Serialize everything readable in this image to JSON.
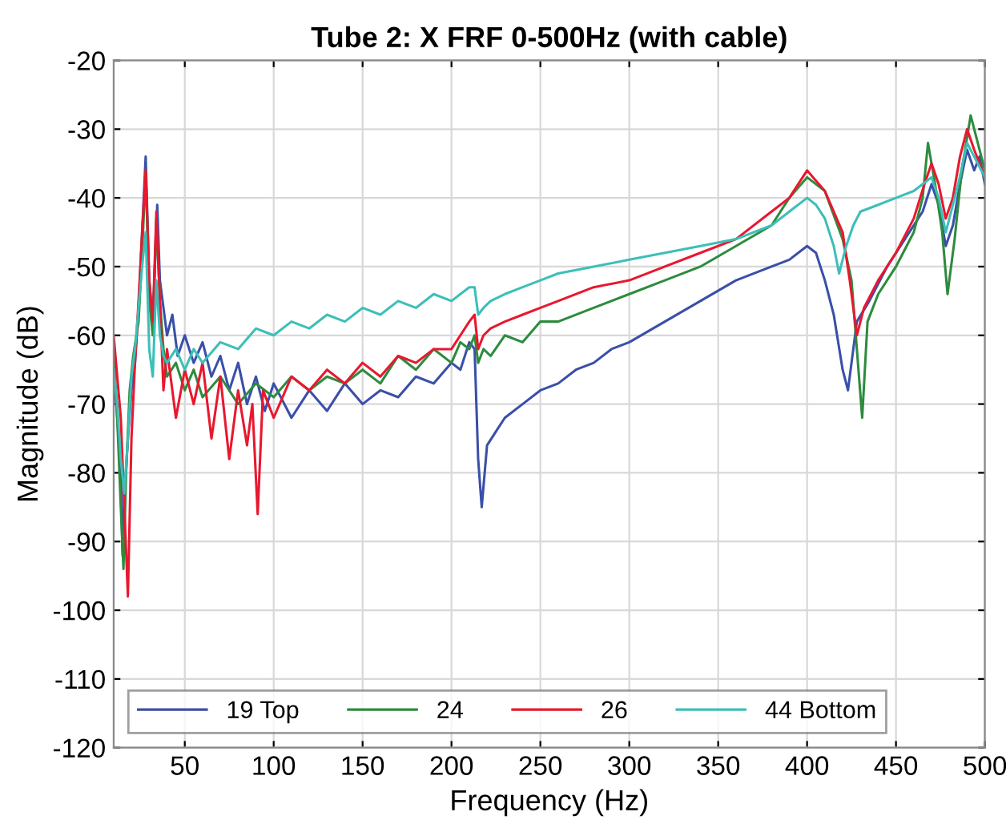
{
  "chart_data": {
    "type": "line",
    "title": "Tube 2: X FRF 0-500Hz (with cable)",
    "xlabel": "Frequency (Hz)",
    "ylabel": "Magnitude (dB)",
    "xlim": [
      10,
      500
    ],
    "xticks": [
      50,
      100,
      150,
      200,
      250,
      300,
      350,
      400,
      450,
      500
    ],
    "ylim": [
      -120,
      -20
    ],
    "yticks": [
      -120,
      -110,
      -100,
      -90,
      -80,
      -70,
      -60,
      -50,
      -40,
      -30,
      -20
    ],
    "grid": true,
    "legend": "bottom left",
    "line_style": "solid",
    "marker": "none",
    "series": [
      {
        "name": "19 Top",
        "color": "#3a4fa8",
        "x": [
          10,
          12,
          14,
          15,
          16,
          18,
          20,
          22,
          24,
          26,
          28,
          30,
          32,
          34.5,
          36,
          38,
          40,
          43,
          46,
          50,
          55,
          60,
          65,
          70,
          75,
          80,
          85,
          90,
          95,
          100,
          110,
          120,
          130,
          140,
          150,
          160,
          170,
          180,
          190,
          200,
          205,
          210,
          213,
          215,
          217,
          220,
          225,
          230,
          240,
          250,
          260,
          270,
          280,
          290,
          300,
          320,
          340,
          360,
          380,
          390,
          400,
          405,
          410,
          415,
          420,
          423,
          428,
          435,
          445,
          455,
          465,
          470,
          474,
          478,
          482,
          486,
          490,
          494,
          497,
          500
        ],
        "values": [
          -65,
          -72,
          -80,
          -92,
          -84,
          -75,
          -68,
          -64,
          -56,
          -45,
          -34,
          -52,
          -58,
          -41,
          -52,
          -56,
          -60,
          -57,
          -63,
          -60,
          -64,
          -61,
          -66,
          -63,
          -68,
          -64,
          -70,
          -66,
          -71,
          -67,
          -72,
          -68,
          -71,
          -67,
          -70,
          -68,
          -69,
          -66,
          -67,
          -64,
          -65,
          -61,
          -62,
          -78,
          -85,
          -76,
          -74,
          -72,
          -70,
          -68,
          -67,
          -65,
          -64,
          -62,
          -61,
          -58,
          -55,
          -52,
          -50,
          -49,
          -47,
          -48,
          -52,
          -57,
          -65,
          -68,
          -58,
          -55,
          -50,
          -46,
          -42,
          -38,
          -41,
          -47,
          -44,
          -38,
          -33,
          -36,
          -34,
          -38
        ]
      },
      {
        "name": "24",
        "color": "#2e8b3e",
        "x": [
          10,
          12,
          14,
          15.5,
          17,
          19,
          21,
          24,
          26,
          28,
          30,
          32,
          34,
          36,
          38,
          40,
          45,
          50,
          55,
          60,
          70,
          80,
          90,
          100,
          110,
          120,
          130,
          140,
          150,
          160,
          170,
          180,
          190,
          200,
          205,
          210,
          213,
          215,
          218,
          222,
          230,
          240,
          250,
          260,
          280,
          300,
          320,
          340,
          360,
          380,
          390,
          400,
          410,
          420,
          425,
          428,
          431,
          434,
          440,
          450,
          460,
          465,
          468,
          472,
          476,
          479,
          483,
          487,
          492,
          496,
          500
        ],
        "values": [
          -62,
          -72,
          -85,
          -94,
          -80,
          -68,
          -63,
          -58,
          -48,
          -36,
          -55,
          -60,
          -43,
          -55,
          -62,
          -66,
          -64,
          -68,
          -65,
          -69,
          -66,
          -70,
          -67,
          -69,
          -66,
          -68,
          -66,
          -67,
          -65,
          -67,
          -63,
          -65,
          -62,
          -64,
          -61,
          -62,
          -60,
          -64,
          -62,
          -63,
          -60,
          -61,
          -58,
          -58,
          -56,
          -54,
          -52,
          -50,
          -47,
          -44,
          -40,
          -37,
          -39,
          -46,
          -52,
          -62,
          -72,
          -58,
          -54,
          -50,
          -45,
          -40,
          -32,
          -38,
          -45,
          -54,
          -46,
          -36,
          -28,
          -32,
          -36
        ]
      },
      {
        "name": "26",
        "color": "#e8182f",
        "x": [
          10,
          12,
          14,
          16,
          18,
          20,
          22,
          24,
          26,
          28,
          30,
          32,
          34,
          36,
          38,
          40,
          45,
          50,
          55,
          60,
          65,
          70,
          75,
          80,
          85,
          88,
          91,
          94,
          100,
          110,
          120,
          130,
          140,
          150,
          160,
          170,
          180,
          190,
          200,
          205,
          210,
          213,
          215,
          218,
          222,
          230,
          240,
          250,
          260,
          280,
          300,
          320,
          340,
          360,
          380,
          390,
          400,
          410,
          420,
          424,
          428,
          432,
          440,
          450,
          460,
          466,
          470,
          474,
          478,
          482,
          486,
          490,
          494,
          500
        ],
        "values": [
          -60,
          -66,
          -72,
          -85,
          -98,
          -75,
          -64,
          -55,
          -45,
          -36,
          -52,
          -58,
          -42,
          -55,
          -68,
          -62,
          -72,
          -65,
          -70,
          -64,
          -75,
          -66,
          -78,
          -68,
          -76,
          -70,
          -86,
          -68,
          -72,
          -66,
          -68,
          -65,
          -67,
          -64,
          -66,
          -63,
          -64,
          -62,
          -62,
          -60,
          -58,
          -57,
          -62,
          -60,
          -59,
          -58,
          -57,
          -56,
          -55,
          -53,
          -52,
          -50,
          -48,
          -46,
          -42,
          -40,
          -36,
          -39,
          -45,
          -52,
          -60,
          -56,
          -52,
          -48,
          -43,
          -38,
          -35,
          -38,
          -43,
          -40,
          -34,
          -30,
          -33,
          -37
        ]
      },
      {
        "name": "44 Bottom",
        "color": "#3cbfb8",
        "x": [
          10,
          12,
          14,
          16,
          18,
          20,
          22,
          24,
          26,
          28,
          30,
          32,
          34,
          36,
          38,
          40,
          45,
          50,
          55,
          60,
          70,
          80,
          90,
          100,
          110,
          120,
          130,
          140,
          150,
          160,
          170,
          180,
          190,
          200,
          205,
          210,
          213,
          215,
          218,
          222,
          230,
          240,
          250,
          260,
          280,
          300,
          320,
          340,
          360,
          380,
          390,
          400,
          405,
          410,
          415,
          418,
          422,
          426,
          430,
          440,
          450,
          460,
          465,
          470,
          474,
          478,
          481,
          485,
          490,
          494,
          500
        ],
        "values": [
          -65,
          -70,
          -78,
          -83,
          -75,
          -66,
          -62,
          -56,
          -50,
          -45,
          -62,
          -66,
          -52,
          -60,
          -63,
          -64,
          -62,
          -65,
          -62,
          -64,
          -61,
          -62,
          -59,
          -60,
          -58,
          -59,
          -57,
          -58,
          -56,
          -57,
          -55,
          -56,
          -54,
          -55,
          -54,
          -53,
          -53,
          -57,
          -56,
          -55,
          -54,
          -53,
          -52,
          -51,
          -50,
          -49,
          -48,
          -47,
          -46,
          -44,
          -42,
          -40,
          -41,
          -43,
          -47,
          -51,
          -47,
          -44,
          -42,
          -41,
          -40,
          -39,
          -38,
          -37,
          -40,
          -45,
          -42,
          -38,
          -32,
          -34,
          -37
        ]
      }
    ]
  }
}
